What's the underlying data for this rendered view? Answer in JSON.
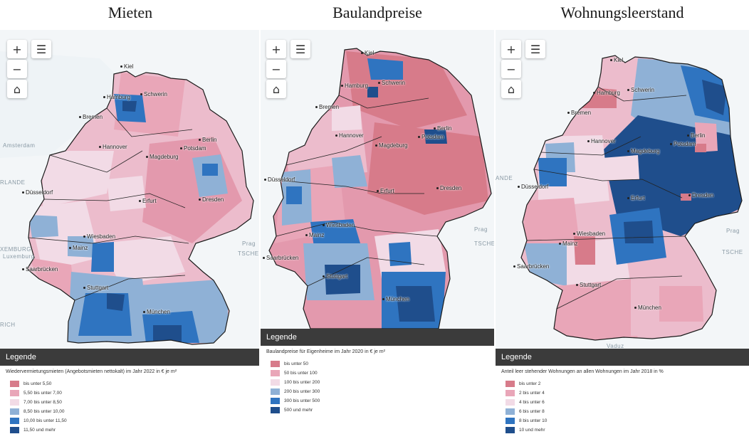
{
  "panels": [
    {
      "title": "Mieten",
      "map": {
        "cities": [
          "Kiel",
          "Hamburg",
          "Schwerin",
          "Bremen",
          "Hannover",
          "Berlin",
          "Potsdam",
          "Magdeburg",
          "Düsseldorf",
          "Erfurt",
          "Dresden",
          "Wiesbaden",
          "Mainz",
          "Saarbrücken",
          "Stuttgart",
          "München"
        ],
        "background_labels": [
          "Amsterdam",
          "RLANDE",
          "XEMBURG",
          "Luxemburg",
          "TSCHE",
          "Prag",
          "RICH"
        ]
      },
      "controls": {
        "zoom_in": "+",
        "zoom_out": "−",
        "layers": "☰",
        "home": "⌂"
      },
      "legend": {
        "header": "Legende",
        "caption": "Wiedervermietungsmieten (Angebotsmieten nettokalt) im Jahr 2022 in € je m²",
        "classes": [
          {
            "label": "bis unter 5,50",
            "color": "#d77b8a"
          },
          {
            "label": "5,50 bis unter 7,00",
            "color": "#e9a6b8"
          },
          {
            "label": "7,00 bis unter 8,50",
            "color": "#f2dbe6"
          },
          {
            "label": "8,50 bis unter 10,00",
            "color": "#8fb1d6"
          },
          {
            "label": "10,00 bis unter 11,50",
            "color": "#2f74c0"
          },
          {
            "label": "11,50 und mehr",
            "color": "#1f4e8c"
          }
        ]
      }
    },
    {
      "title": "Baulandpreise",
      "map": {
        "cities": [
          "Kiel",
          "Hamburg",
          "Schwerin",
          "Bremen",
          "Hannover",
          "Berlin",
          "Potsdam",
          "Magdeburg",
          "Düsseldorf",
          "Erfurt",
          "Dresden",
          "Wiesbaden",
          "Mainz",
          "Saarbrücken",
          "Stuttgart",
          "München"
        ],
        "background_labels": [
          "Prag",
          "TSCHE"
        ]
      },
      "controls": {
        "zoom_in": "+",
        "zoom_out": "−",
        "layers": "☰",
        "home": "⌂"
      },
      "legend": {
        "header": "Legende",
        "caption": "Baulandpreise für Eigenheime im Jahr 2020 in € je m²",
        "classes": [
          {
            "label": "bis unter 50",
            "color": "#d77b8a"
          },
          {
            "label": "50 bis unter 100",
            "color": "#e9a6b8"
          },
          {
            "label": "100 bis unter 200",
            "color": "#f2dbe6"
          },
          {
            "label": "200 bis unter 300",
            "color": "#8fb1d6"
          },
          {
            "label": "300 bis unter 500",
            "color": "#2f74c0"
          },
          {
            "label": "500 und mehr",
            "color": "#1f4e8c"
          }
        ]
      }
    },
    {
      "title": "Wohnungsleerstand",
      "map": {
        "cities": [
          "Kiel",
          "Hamburg",
          "Schwerin",
          "Bremen",
          "Hannover",
          "Berlin",
          "Potsdam",
          "Magdeburg",
          "Düsseldorf",
          "Erfurt",
          "Dresden",
          "Wiesbaden",
          "Mainz",
          "Saarbrücken",
          "Stuttgart",
          "München"
        ],
        "background_labels": [
          "ANDE",
          "Prag",
          "TSCHE",
          "Vaduz"
        ]
      },
      "controls": {
        "zoom_in": "+",
        "zoom_out": "−",
        "layers": "☰",
        "home": "⌂"
      },
      "legend": {
        "header": "Legende",
        "caption": "Anteil leer stehender Wohnungen an allen Wohnungen im Jahr 2018 in %",
        "classes": [
          {
            "label": "bis unter 2",
            "color": "#d77b8a"
          },
          {
            "label": "2 bis unter 4",
            "color": "#e9a6b8"
          },
          {
            "label": "4 bis unter 6",
            "color": "#f2dbe6"
          },
          {
            "label": "6 bis unter 8",
            "color": "#8fb1d6"
          },
          {
            "label": "8 bis unter 10",
            "color": "#2f74c0"
          },
          {
            "label": "10 und mehr",
            "color": "#1f4e8c"
          }
        ]
      }
    }
  ]
}
